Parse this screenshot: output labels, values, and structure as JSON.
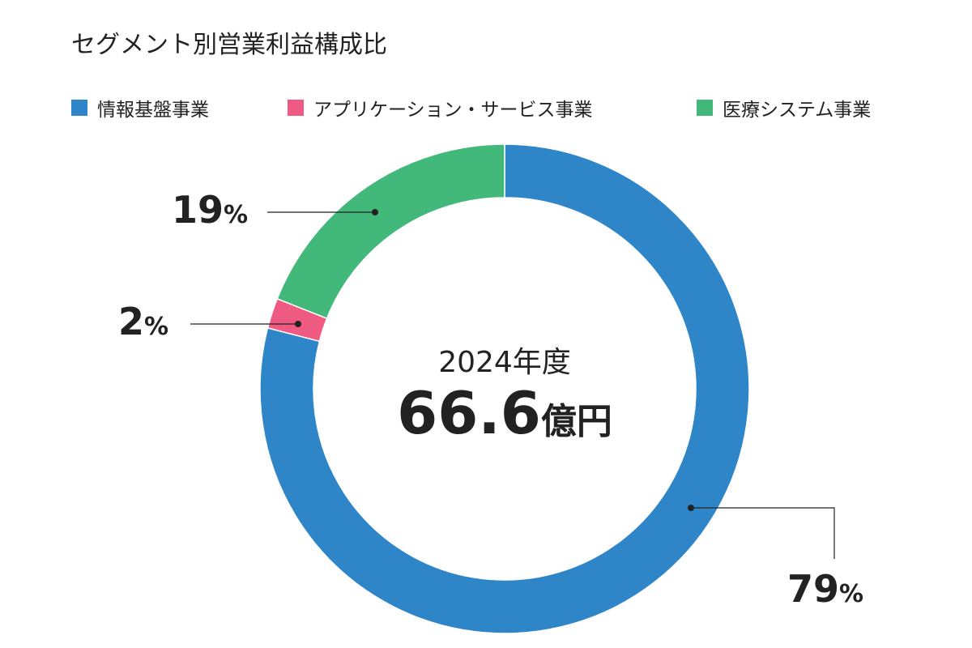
{
  "chart_data": {
    "type": "pie",
    "title": "セグメント別営業利益構成比",
    "center_label": "2024年度",
    "center_value": "66.6",
    "center_unit": "億円",
    "categories": [
      "情報基盤事業",
      "アプリケーション・サービス事業",
      "医療システム事業"
    ],
    "values": [
      79,
      2,
      19
    ],
    "value_suffix": "%",
    "colors": [
      "#2e86c8",
      "#ef5a82",
      "#42b97a"
    ],
    "legend_position": "top"
  }
}
